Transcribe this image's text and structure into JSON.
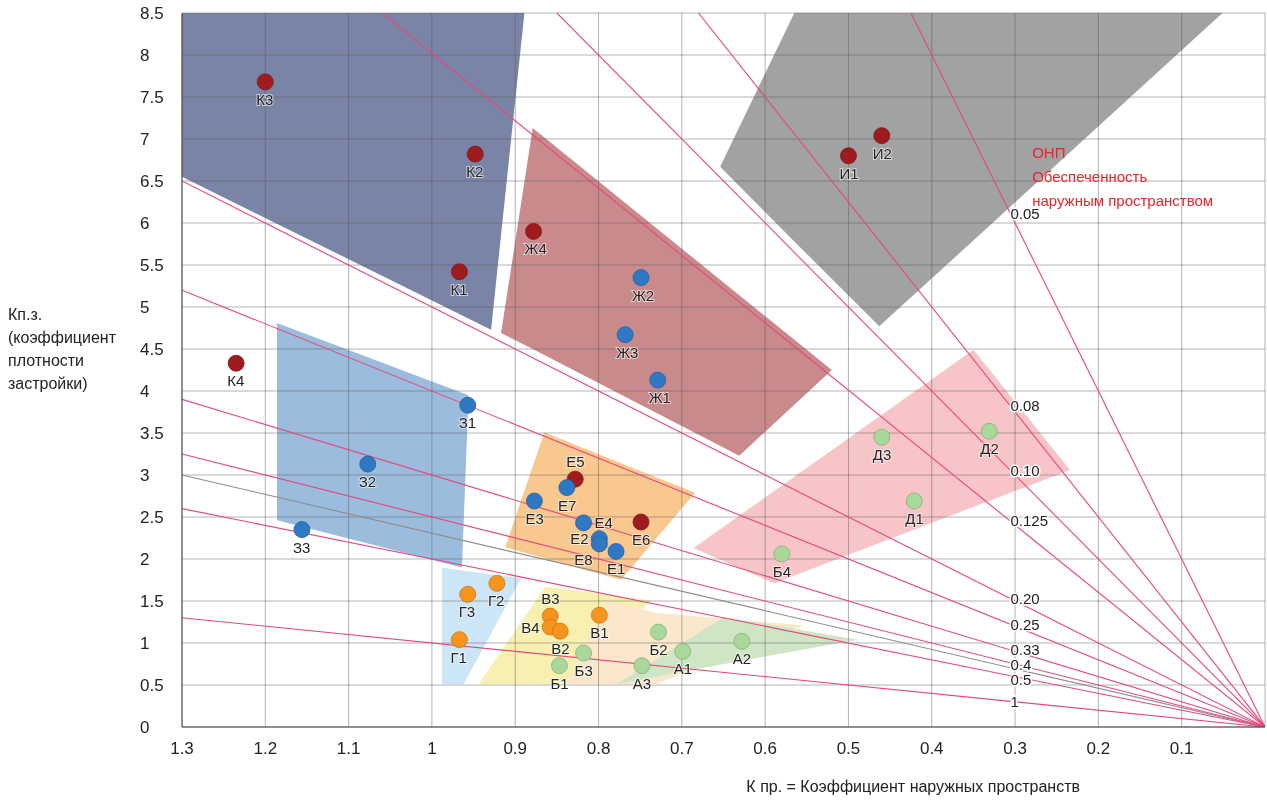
{
  "chart_data": {
    "type": "scatter",
    "xlabel": "К пр. = Коэффициент наружных пространств",
    "ylabel": "Кп.з. (коэффициент плотности застройки)",
    "xlim": [
      1.3,
      0
    ],
    "ylim": [
      0,
      8.5
    ],
    "xticks": [
      1.3,
      1.2,
      1.1,
      1,
      0.9,
      0.8,
      0.7,
      0.6,
      0.5,
      0.4,
      0.3,
      0.2,
      0.1
    ],
    "yticks": [
      0,
      0.5,
      1,
      1.5,
      2,
      2.5,
      3,
      3.5,
      4,
      4.5,
      5,
      5.5,
      6,
      6.5,
      7,
      7.5,
      8,
      8.5
    ],
    "grid": true,
    "series": [
      {
        "type": "area",
        "color": "#7a84a6",
        "x": [
          1.3,
          0.929,
          0.889
        ],
        "values": [
          null,
          null,
          null
        ],
        "upper": [
          8.5,
          8.5,
          8.5
        ],
        "lower": [
          6.55,
          4.73,
          8.5
        ]
      },
      {
        "type": "area",
        "color": "#c98a8b",
        "x": [
          0.917,
          0.879,
          0.631,
          0.52
        ],
        "values": [
          null,
          null,
          null,
          null
        ],
        "upper": [
          4.69,
          7.13,
          5.14,
          4.25
        ],
        "lower": [
          4.69,
          4.5,
          3.23,
          4.25
        ]
      },
      {
        "type": "area",
        "color": "#a0a2a3",
        "x": [
          0.654,
          0.565,
          0.463,
          0.051
        ],
        "values": [
          null,
          null,
          null,
          null
        ],
        "upper": [
          6.67,
          8.5,
          8.5,
          8.5
        ],
        "lower": [
          6.67,
          5.78,
          4.77,
          8.5
        ]
      },
      {
        "type": "area",
        "color": "#f7c5c8",
        "x": [
          0.686,
          0.589,
          0.35,
          0.234
        ],
        "values": [
          null,
          null,
          null,
          null
        ],
        "upper": [
          2.13,
          2.81,
          4.49,
          3.06
        ],
        "lower": [
          2.13,
          1.71,
          2.62,
          3.06
        ]
      },
      {
        "type": "area",
        "color": "#9bbcdd",
        "x": [
          1.186,
          0.964,
          0.956
        ],
        "values": [
          null,
          null,
          null
        ],
        "upper": [
          4.81,
          3.98,
          3.95
        ],
        "lower": [
          2.46,
          1.9,
          3.95
        ]
      },
      {
        "type": "area",
        "color": "#f9c88f",
        "x": [
          0.912,
          0.865,
          0.773,
          0.684
        ],
        "values": [
          null,
          null,
          null,
          null
        ],
        "upper": [
          2.14,
          3.51,
          3.14,
          2.79
        ],
        "lower": [
          2.14,
          2.01,
          1.75,
          2.79
        ]
      },
      {
        "type": "area",
        "color": "#cde6f7",
        "x": [
          0.988,
          0.962,
          0.893
        ],
        "values": [
          null,
          null,
          null
        ],
        "upper": [
          1.9,
          1.86,
          1.77
        ],
        "lower": [
          0.51,
          0.51,
          1.77
        ]
      },
      {
        "type": "area",
        "color": "#f8f0b0",
        "x": [
          0.944,
          0.864,
          0.838,
          0.737
        ],
        "values": [
          null,
          null,
          null,
          null
        ],
        "upper": [
          0.51,
          1.67,
          1.64,
          1.51
        ],
        "lower": [
          0.51,
          0.51,
          0.51,
          1.51
        ]
      },
      {
        "type": "area",
        "color": "#fbe8cc",
        "x": [
          0.838,
          0.79,
          0.731,
          0.554
        ],
        "values": [
          null,
          null,
          null,
          null
        ],
        "upper": [
          0.51,
          1.51,
          1.36,
          1.21
        ],
        "lower": [
          0.51,
          0.51,
          0.51,
          1.21
        ]
      },
      {
        "type": "area",
        "color": "#cfe6c6",
        "x": [
          0.779,
          0.649,
          0.489
        ],
        "values": [
          null,
          null,
          null
        ],
        "upper": [
          0.51,
          1.31,
          1.04
        ],
        "lower": [
          0.51,
          0.75,
          1.04
        ]
      },
      {
        "type": "line",
        "name": "0.05",
        "color": "#e5487c",
        "x": [
          0,
          0.425
        ],
        "values": [
          0,
          8.5
        ]
      },
      {
        "type": "line",
        "name": "0.08",
        "color": "#e5487c",
        "x": [
          0,
          0.68
        ],
        "values": [
          0,
          8.5
        ]
      },
      {
        "type": "line",
        "name": "0.10",
        "color": "#e5487c",
        "x": [
          0,
          0.85
        ],
        "values": [
          0,
          8.5
        ]
      },
      {
        "type": "line",
        "name": "0.125",
        "color": "#e5487c",
        "x": [
          0,
          1.06
        ],
        "values": [
          0,
          8.5
        ]
      },
      {
        "type": "line",
        "name": "0.20",
        "color": "#e5487c",
        "x": [
          0,
          1.3
        ],
        "values": [
          0,
          6.5
        ]
      },
      {
        "type": "line",
        "name": "0.25",
        "color": "#e5487c",
        "x": [
          0,
          1.3
        ],
        "values": [
          0,
          5.2
        ]
      },
      {
        "type": "line",
        "name": "0.33",
        "color": "#e5487c",
        "x": [
          0,
          1.3
        ],
        "values": [
          0,
          3.9
        ]
      },
      {
        "type": "line",
        "name": "0.4",
        "color": "#e5487c",
        "x": [
          0,
          1.3
        ],
        "values": [
          0,
          3.25
        ]
      },
      {
        "type": "line",
        "color": "#8c8c8c",
        "x": [
          0,
          1.3
        ],
        "values": [
          0,
          3.0
        ]
      },
      {
        "type": "line",
        "name": "0.5",
        "color": "#e5487c",
        "x": [
          0,
          1.3
        ],
        "values": [
          0,
          2.6
        ]
      },
      {
        "type": "line",
        "name": "1",
        "color": "#e5487c",
        "x": [
          0,
          1.3
        ],
        "values": [
          0,
          1.3
        ]
      },
      {
        "type": "scatter",
        "marker": "circle",
        "color": "#9e1b1e",
        "x": [
          1.2,
          0.948,
          0.878,
          0.967,
          1.235,
          0.5,
          0.46,
          0.828,
          0.749
        ],
        "values": [
          7.68,
          6.82,
          5.9,
          5.42,
          4.33,
          6.8,
          7.04,
          2.95,
          2.44
        ]
      },
      {
        "type": "scatter",
        "marker": "circle",
        "color": "#2f78c4",
        "x": [
          0.749,
          0.768,
          0.729,
          0.957,
          1.077,
          1.156,
          0.877,
          0.838,
          0.818,
          0.799,
          0.799,
          0.779
        ],
        "values": [
          5.35,
          4.67,
          4.13,
          3.83,
          3.13,
          2.35,
          2.69,
          2.85,
          2.43,
          2.24,
          2.18,
          2.09
        ]
      },
      {
        "type": "scatter",
        "marker": "circle",
        "color": "#f7941d",
        "x": [
          0.957,
          0.922,
          0.967,
          0.858,
          0.858,
          0.846,
          0.799
        ],
        "values": [
          1.58,
          1.71,
          1.04,
          1.32,
          1.19,
          1.14,
          1.33
        ]
      },
      {
        "type": "scatter",
        "marker": "circle",
        "color": "#a8d89a",
        "x": [
          0.847,
          0.818,
          0.728,
          0.699,
          0.748,
          0.628,
          0.46,
          0.331,
          0.421,
          0.58
        ],
        "values": [
          0.73,
          0.88,
          1.13,
          0.9,
          0.73,
          1.02,
          3.45,
          3.52,
          2.69,
          2.06
        ]
      }
    ],
    "annotations": [
      "ОНП",
      "Обеспеченность наружным пространством",
      {
        "text": "К3",
        "x": 1.2,
        "y": 7.68
      },
      {
        "text": "К2",
        "x": 0.948,
        "y": 6.82
      },
      {
        "text": "Ж4",
        "x": 0.878,
        "y": 5.9
      },
      {
        "text": "К1",
        "x": 0.967,
        "y": 5.42
      },
      {
        "text": "К4",
        "x": 1.235,
        "y": 4.33
      },
      {
        "text": "И1",
        "x": 0.5,
        "y": 6.8
      },
      {
        "text": "И2",
        "x": 0.46,
        "y": 7.04
      },
      {
        "text": "Е5",
        "x": 0.828,
        "y": 2.95
      },
      {
        "text": "Е6",
        "x": 0.749,
        "y": 2.44
      },
      {
        "text": "Ж2",
        "x": 0.749,
        "y": 5.35
      },
      {
        "text": "Ж3",
        "x": 0.768,
        "y": 4.67
      },
      {
        "text": "Ж1",
        "x": 0.729,
        "y": 4.13
      },
      {
        "text": "З1",
        "x": 0.957,
        "y": 3.83
      },
      {
        "text": "З2",
        "x": 1.077,
        "y": 3.13
      },
      {
        "text": "З3",
        "x": 1.156,
        "y": 2.35
      },
      {
        "text": "Е3",
        "x": 0.877,
        "y": 2.69
      },
      {
        "text": "Е7",
        "x": 0.838,
        "y": 2.85
      },
      {
        "text": "Е4",
        "x": 0.818,
        "y": 2.43
      },
      {
        "text": "Е2",
        "x": 0.799,
        "y": 2.24
      },
      {
        "text": "Е8",
        "x": 0.799,
        "y": 2.18
      },
      {
        "text": "Е1",
        "x": 0.779,
        "y": 2.09
      },
      {
        "text": "Г3",
        "x": 0.957,
        "y": 1.58
      },
      {
        "text": "Г2",
        "x": 0.922,
        "y": 1.71
      },
      {
        "text": "Г1",
        "x": 0.967,
        "y": 1.04
      },
      {
        "text": "В3",
        "x": 0.858,
        "y": 1.32
      },
      {
        "text": "В4",
        "x": 0.858,
        "y": 1.19
      },
      {
        "text": "В2",
        "x": 0.846,
        "y": 1.14
      },
      {
        "text": "В1",
        "x": 0.799,
        "y": 1.33
      },
      {
        "text": "Б1",
        "x": 0.847,
        "y": 0.73
      },
      {
        "text": "Б3",
        "x": 0.818,
        "y": 0.88
      },
      {
        "text": "Б2",
        "x": 0.728,
        "y": 1.13
      },
      {
        "text": "А1",
        "x": 0.699,
        "y": 0.9
      },
      {
        "text": "А3",
        "x": 0.748,
        "y": 0.73
      },
      {
        "text": "А2",
        "x": 0.628,
        "y": 1.02
      },
      {
        "text": "Д3",
        "x": 0.46,
        "y": 3.45
      },
      {
        "text": "Д2",
        "x": 0.331,
        "y": 3.52
      },
      {
        "text": "Д1",
        "x": 0.421,
        "y": 2.69
      },
      {
        "text": "Б4",
        "x": 0.58,
        "y": 2.06
      }
    ]
  }
}
